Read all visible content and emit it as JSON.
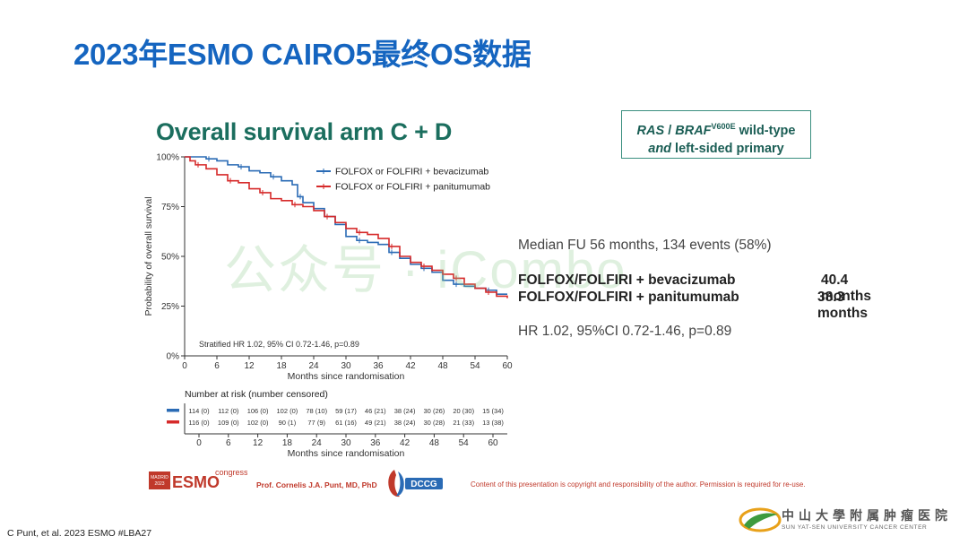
{
  "slide": {
    "title": "2023年ESMO CAIRO5最终OS数据",
    "inner_title": "Overall survival arm C + D",
    "ras_box": {
      "line1_pre": "RAS",
      "line1_sep": " / ",
      "line1_braf": "BRAF",
      "line1_sup": "V600E",
      "line1_post": " wild-type",
      "line2_and": "and",
      "line2_post": " left-sided primary"
    },
    "median_fu": "Median FU 56 months, 134 events (58%)",
    "arms": [
      {
        "label": "FOLFOX/FOLFIRI + bevacizumab",
        "os": "40.4 months"
      },
      {
        "label": "FOLFOX/FOLFIRI + panitumumab",
        "os": "38.3 months"
      }
    ],
    "hr_text": "HR 1.02, 95%CI 0.72-1.46, p=0.89",
    "watermark": "公众号 · iCombo",
    "footer": {
      "author": "Prof. Cornelis J.A. Punt, MD, PhD",
      "copyright": "Content of this presentation is copyright and responsibility of the author. Permission is required for re-use.",
      "citation": "C Punt, et al. 2023 ESMO #LBA27",
      "esmo_madrid": "MADRID",
      "esmo_year": "2023",
      "esmo_word": "ESMO",
      "esmo_congress": "congress",
      "dccg": "DCCG",
      "sysu_cn": "中山大學附属肿瘤医院",
      "sysu_en": "SUN YAT-SEN UNIVERSITY CANCER CENTER"
    }
  },
  "colors": {
    "blue": "#2a6bb5",
    "red": "#d62a2a",
    "title_blue": "#1565c0",
    "teal": "#1b6e5e"
  },
  "chart_data": {
    "type": "line",
    "title": "",
    "xlabel": "Months since randomisation",
    "ylabel": "Probability of overall survival",
    "xlim": [
      0,
      60
    ],
    "ylim": [
      0,
      100
    ],
    "x_ticks": [
      0,
      6,
      12,
      18,
      24,
      30,
      36,
      42,
      48,
      54,
      60
    ],
    "y_ticks": [
      0,
      25,
      50,
      75,
      100
    ],
    "y_tick_labels": [
      "0%",
      "25%",
      "50%",
      "75%",
      "100%"
    ],
    "legend_position": "top-right",
    "annotation": "Stratified HR 1.02, 95% CI 0.72-1.46, p=0.89",
    "series": [
      {
        "name": "FOLFOX or FOLFIRI + bevacizumab",
        "color": "#2a6bb5",
        "x": [
          0,
          2,
          4,
          6,
          8,
          10,
          12,
          14,
          16,
          18,
          20,
          21,
          22,
          24,
          26,
          28,
          30,
          32,
          34,
          36,
          38,
          40,
          42,
          44,
          46,
          48,
          50,
          52,
          54,
          56,
          58,
          60
        ],
        "y": [
          100,
          100,
          99,
          98,
          96,
          95,
          93,
          92,
          90,
          88,
          86,
          80,
          77,
          74,
          70,
          66,
          60,
          58,
          57,
          56,
          52,
          49,
          46,
          44,
          42,
          38,
          36,
          35,
          34,
          33,
          31,
          31
        ]
      },
      {
        "name": "FOLFOX or FOLFIRI + panitumumab",
        "color": "#d62a2a",
        "x": [
          0,
          1,
          2,
          4,
          6,
          8,
          10,
          12,
          14,
          16,
          18,
          20,
          22,
          24,
          26,
          28,
          30,
          32,
          34,
          36,
          38,
          40,
          42,
          44,
          46,
          48,
          50,
          52,
          54,
          56,
          58,
          60
        ],
        "y": [
          100,
          98,
          96,
          94,
          91,
          88,
          87,
          84,
          82,
          79,
          78,
          76,
          75,
          73,
          70,
          67,
          64,
          62,
          61,
          59,
          55,
          50,
          47,
          45,
          43,
          41,
          39,
          36,
          34,
          32,
          30,
          29
        ]
      }
    ],
    "risk_table": {
      "title": "Number at risk (number censored)",
      "xlabel": "Months since randomisation",
      "rows": [
        {
          "series": "FOLFOX or FOLFIRI + bevacizumab",
          "color": "#2a6bb5",
          "values": [
            "114 (0)",
            "112 (0)",
            "106 (0)",
            "102 (0)",
            "78 (10)",
            "59 (17)",
            "46 (21)",
            "38 (24)",
            "30 (26)",
            "20 (30)",
            "15 (34)"
          ]
        },
        {
          "series": "FOLFOX or FOLFIRI + panitumumab",
          "color": "#d62a2a",
          "values": [
            "116 (0)",
            "109 (0)",
            "102 (0)",
            "90 (1)",
            "77 (9)",
            "61 (16)",
            "49 (21)",
            "38 (24)",
            "30 (28)",
            "21 (33)",
            "13 (38)"
          ]
        }
      ]
    }
  }
}
